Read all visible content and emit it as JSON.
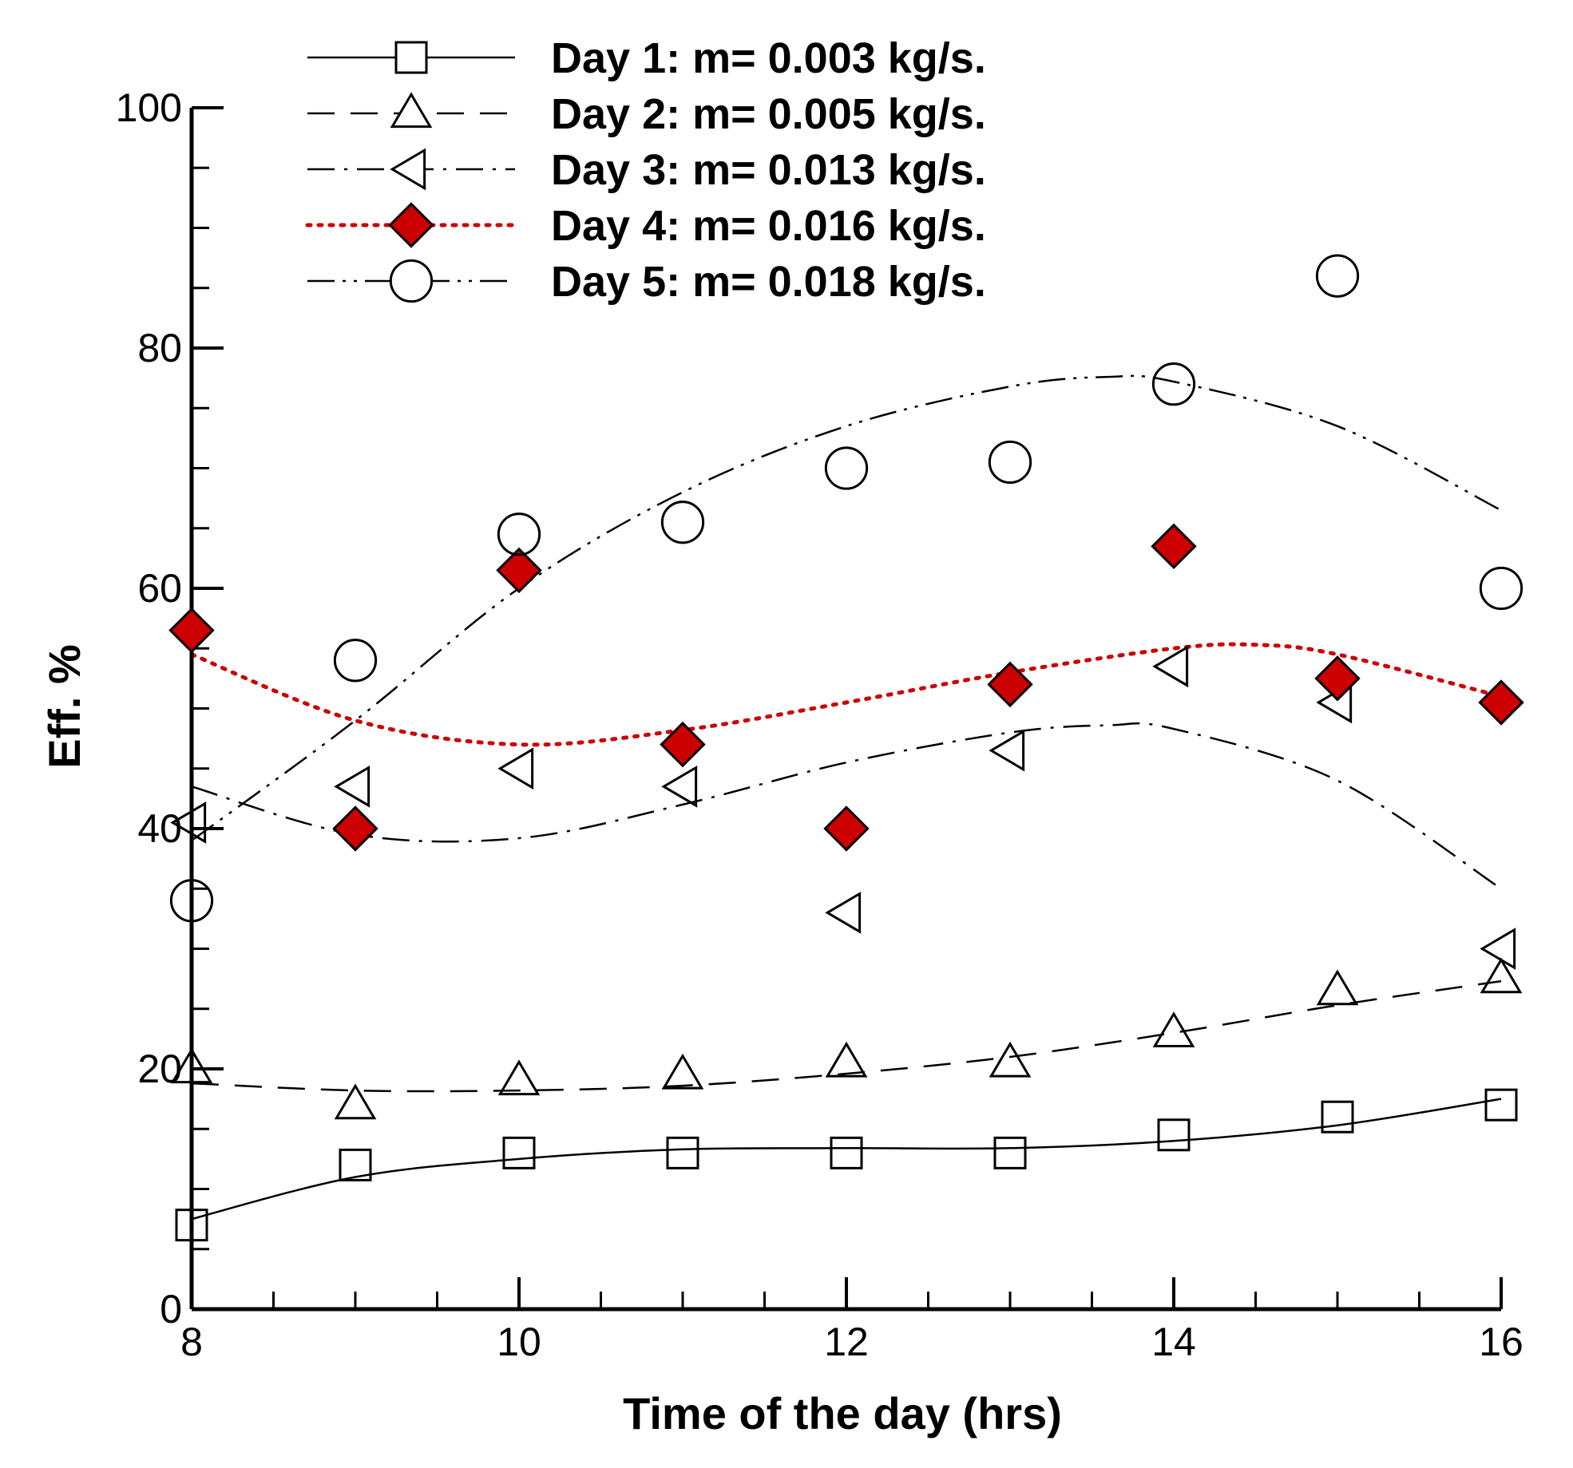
{
  "chart_data": {
    "type": "scatter",
    "title": "",
    "xlabel": "Time of the day (hrs)",
    "ylabel": "Eff. %",
    "xlim": [
      8,
      16
    ],
    "ylim": [
      0,
      100
    ],
    "x_ticks": [
      8,
      10,
      12,
      14,
      16
    ],
    "y_ticks": [
      0,
      20,
      40,
      60,
      80,
      100
    ],
    "grid": false,
    "legend_position": "top",
    "series": [
      {
        "name": "Day 1: m= 0.003 kg/s.",
        "marker": "square",
        "line_style": "solid",
        "color": "#000000",
        "fill": "none",
        "points": [
          [
            8,
            7
          ],
          [
            9,
            12
          ],
          [
            10,
            13
          ],
          [
            11,
            13
          ],
          [
            12,
            13
          ],
          [
            13,
            13
          ],
          [
            14,
            14.5
          ],
          [
            15,
            16
          ],
          [
            16,
            17
          ]
        ],
        "fit_curve": [
          [
            8,
            7.5
          ],
          [
            9,
            11
          ],
          [
            10,
            12.5
          ],
          [
            11,
            13.3
          ],
          [
            12,
            13.4
          ],
          [
            13,
            13.4
          ],
          [
            14,
            14
          ],
          [
            15,
            15.3
          ],
          [
            16,
            17.5
          ]
        ]
      },
      {
        "name": "Day 2: m= 0.005 kg/s.",
        "marker": "triangle-up",
        "line_style": "dashed",
        "color": "#000000",
        "fill": "none",
        "points": [
          [
            8,
            20
          ],
          [
            9,
            17
          ],
          [
            10,
            19
          ],
          [
            11,
            19.5
          ],
          [
            12,
            20.5
          ],
          [
            13,
            20.5
          ],
          [
            14,
            23
          ],
          [
            15,
            26.5
          ],
          [
            16,
            27.5
          ]
        ],
        "fit_curve": [
          [
            8,
            18.8
          ],
          [
            9,
            18.2
          ],
          [
            10,
            18.2
          ],
          [
            11,
            18.6
          ],
          [
            12,
            19.6
          ],
          [
            13,
            21
          ],
          [
            14,
            23
          ],
          [
            15,
            25.3
          ],
          [
            16,
            27.3
          ]
        ]
      },
      {
        "name": "Day 3: m= 0.013 kg/s.",
        "marker": "triangle-left",
        "line_style": "dash-dot",
        "color": "#000000",
        "fill": "none",
        "points": [
          [
            8,
            40.5
          ],
          [
            9,
            43.5
          ],
          [
            10,
            45
          ],
          [
            11,
            43.5
          ],
          [
            12,
            33
          ],
          [
            13,
            46.5
          ],
          [
            14,
            53.5
          ],
          [
            15,
            50.5
          ],
          [
            16,
            30
          ]
        ],
        "fit_curve": [
          [
            8,
            43.5
          ],
          [
            9,
            39.5
          ],
          [
            10,
            39.2
          ],
          [
            11,
            42
          ],
          [
            12,
            45.5
          ],
          [
            13,
            48
          ],
          [
            13.6,
            48.6
          ],
          [
            14,
            48.3
          ],
          [
            15,
            44
          ],
          [
            16,
            35
          ]
        ]
      },
      {
        "name": "Day 4: m= 0.016 kg/s.",
        "marker": "diamond",
        "line_style": "dotted",
        "color": "#cc0000",
        "fill": "#cc0000",
        "points": [
          [
            8,
            56.5
          ],
          [
            9,
            40
          ],
          [
            10,
            61.5
          ],
          [
            11,
            47
          ],
          [
            12,
            40
          ],
          [
            13,
            52
          ],
          [
            14,
            63.5
          ],
          [
            15,
            52.5
          ],
          [
            16,
            50.5
          ]
        ],
        "fit_curve": [
          [
            8,
            54.5
          ],
          [
            9,
            49
          ],
          [
            10,
            47
          ],
          [
            11,
            48.2
          ],
          [
            12,
            50.5
          ],
          [
            13,
            53
          ],
          [
            14,
            55
          ],
          [
            14.5,
            55.3
          ],
          [
            15,
            54.5
          ],
          [
            16,
            51
          ]
        ]
      },
      {
        "name": "Day 5: m= 0.018 kg/s.",
        "marker": "circle",
        "line_style": "dash-dot-dot",
        "color": "#000000",
        "fill": "none",
        "points": [
          [
            8,
            34
          ],
          [
            9,
            54
          ],
          [
            10,
            64.5
          ],
          [
            11,
            65.5
          ],
          [
            12,
            70
          ],
          [
            13,
            70.5
          ],
          [
            14,
            77
          ],
          [
            15,
            86
          ],
          [
            16,
            60
          ]
        ],
        "fit_curve": [
          [
            8,
            39
          ],
          [
            9,
            49
          ],
          [
            10,
            60
          ],
          [
            11,
            68
          ],
          [
            12,
            73.5
          ],
          [
            13,
            76.8
          ],
          [
            13.6,
            77.6
          ],
          [
            14,
            77.2
          ],
          [
            15,
            73.5
          ],
          [
            16,
            66.5
          ]
        ]
      }
    ]
  }
}
